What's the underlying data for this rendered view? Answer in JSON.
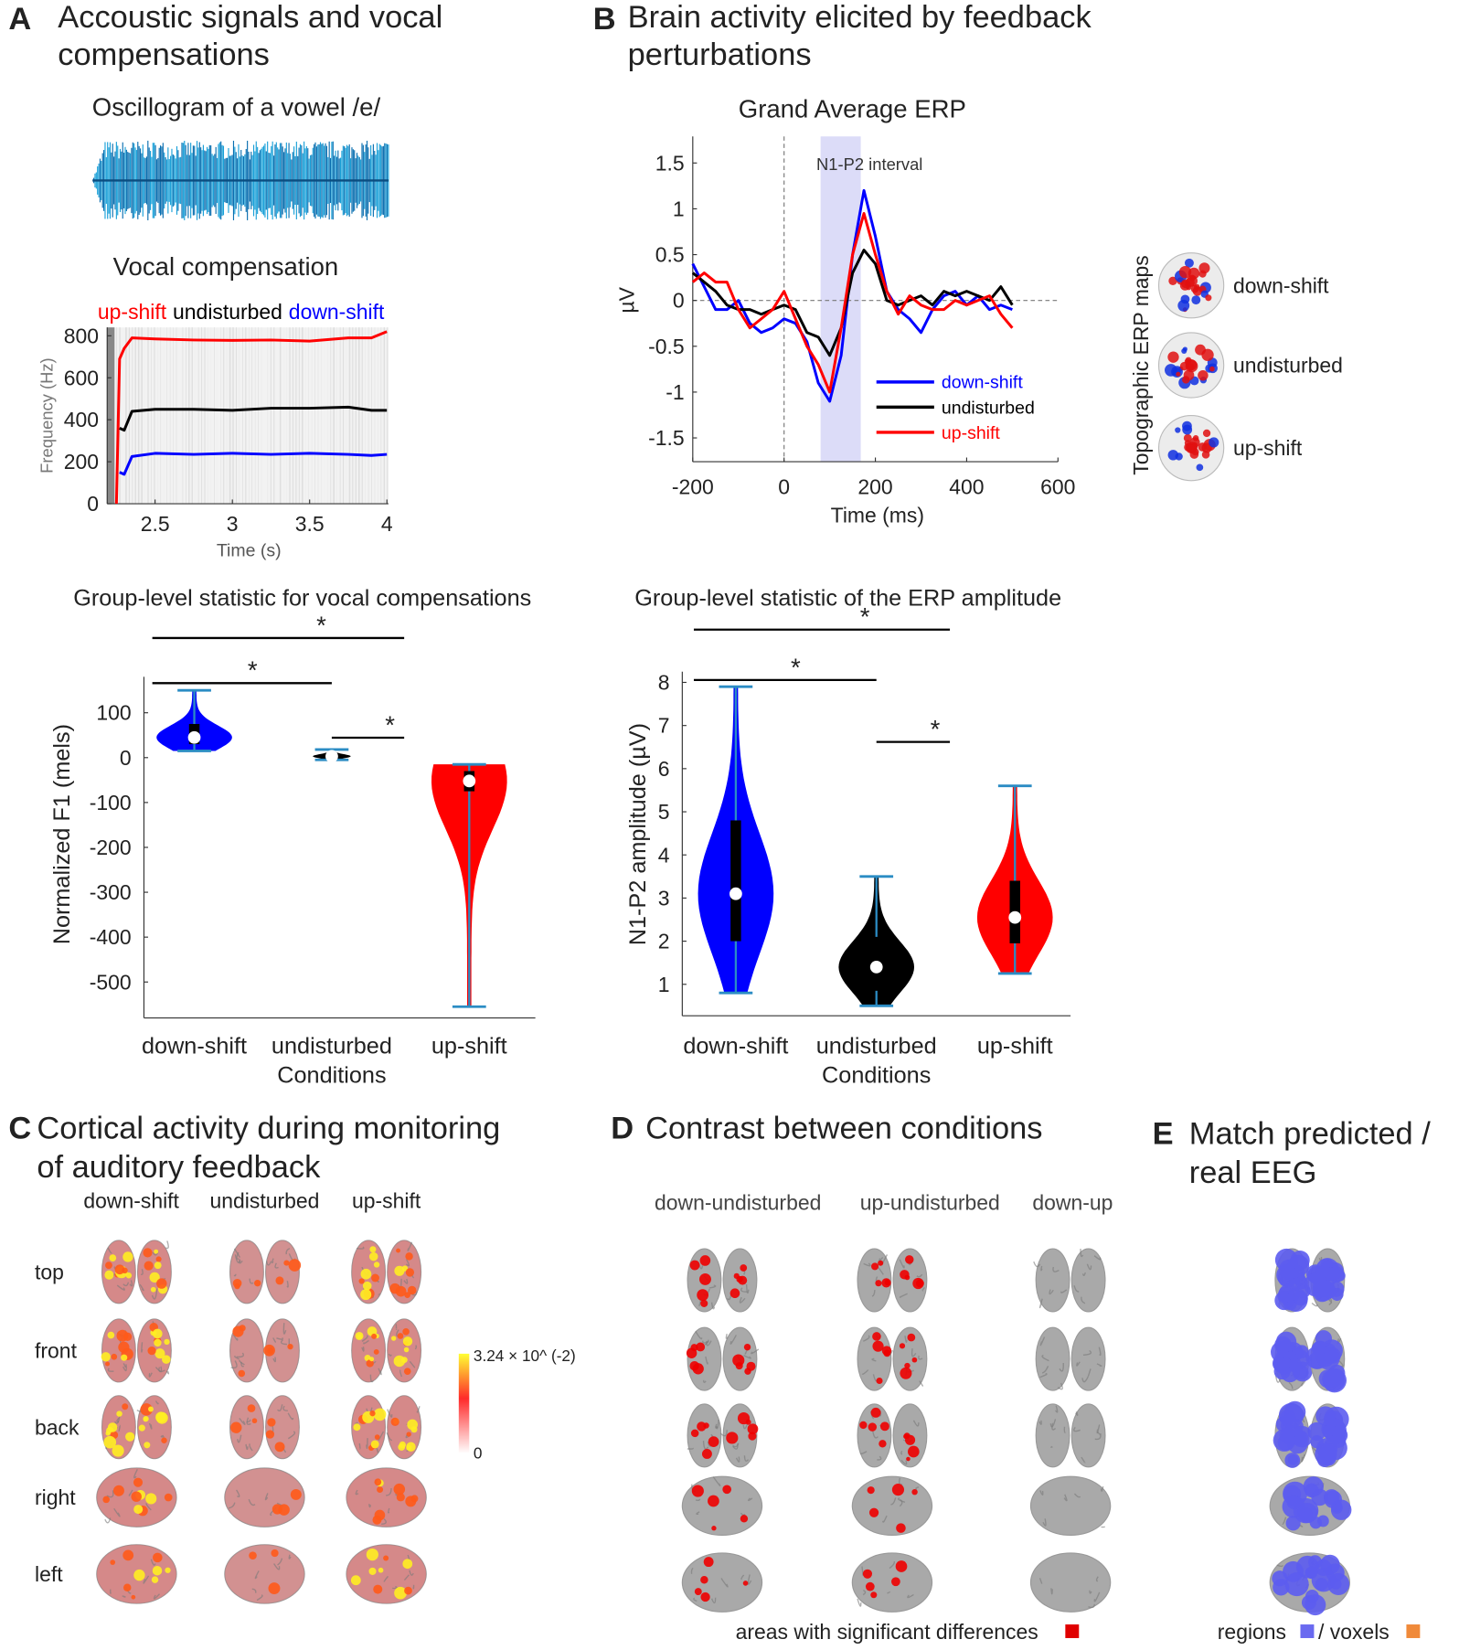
{
  "panel_a": {
    "letter": "A",
    "title_lines": [
      "Accoustic signals and vocal",
      "compensations"
    ],
    "oscillogram_title": "Oscillogram of a vowel /e/"
  },
  "panel_b": {
    "letter": "B",
    "title_lines": [
      "Brain activity elicited by feedback",
      "perturbations"
    ],
    "topo_title": "Topographic ERP maps",
    "topo_labels": [
      "down-shift",
      "undisturbed",
      "up-shift"
    ]
  },
  "panel_c": {
    "letter": "C",
    "title_lines": [
      "Cortical activity during monitoring",
      "of auditory feedback"
    ],
    "columns": [
      "down-shift",
      "undisturbed",
      "up-shift"
    ],
    "rows": [
      "top",
      "front",
      "back",
      "right",
      "left"
    ],
    "colorbar_labels": [
      "3.24 × 10^ (-2)",
      "0"
    ]
  },
  "panel_d": {
    "letter": "D",
    "title": "Contrast between conditions",
    "columns": [
      "down-undisturbed",
      "up-undisturbed",
      "down-up"
    ],
    "legend": "areas with significant differences"
  },
  "panel_e": {
    "letter": "E",
    "title_lines": [
      "Match predicted /",
      "real EEG"
    ],
    "legend": [
      "regions",
      "/ voxels"
    ]
  },
  "chart_data": [
    {
      "type": "line",
      "title": "Vocal compensation",
      "xlabel": "Time (s)",
      "ylabel": "Frequency (Hz)",
      "x": [
        2.25,
        2.27,
        2.3,
        2.35,
        2.5,
        2.75,
        3,
        3.25,
        3.5,
        3.75,
        3.9,
        4.0
      ],
      "series": [
        {
          "name": "up-shift",
          "color": "#ff0000",
          "values": [
            0,
            690,
            740,
            790,
            785,
            780,
            778,
            780,
            775,
            790,
            790,
            820
          ]
        },
        {
          "name": "undisturbed",
          "color": "#000000",
          "values": [
            null,
            360,
            350,
            440,
            450,
            450,
            445,
            455,
            455,
            460,
            445,
            445
          ]
        },
        {
          "name": "down-shift",
          "color": "#0000ff",
          "values": [
            null,
            150,
            140,
            225,
            240,
            235,
            240,
            235,
            240,
            235,
            230,
            235
          ]
        }
      ],
      "xlim": [
        2.19,
        4.01
      ],
      "xticks": [
        2.5,
        3,
        3.5,
        4
      ],
      "ylim": [
        0,
        840
      ],
      "yticks": [
        0,
        200,
        400,
        600,
        800
      ]
    },
    {
      "type": "line",
      "title": "Grand Average ERP",
      "xlabel": "Time (ms)",
      "ylabel": "µV",
      "annotation": "N1-P2 interval",
      "interval": [
        80,
        168
      ],
      "legend": "lower right",
      "x": [
        -200,
        -175,
        -150,
        -125,
        -100,
        -75,
        -50,
        -25,
        0,
        25,
        50,
        75,
        100,
        125,
        150,
        175,
        200,
        225,
        250,
        275,
        300,
        325,
        350,
        375,
        400,
        425,
        450,
        475,
        500
      ],
      "series": [
        {
          "name": "down-shift",
          "color": "#0000ff",
          "values": [
            0.4,
            0.15,
            -0.1,
            -0.1,
            0.0,
            -0.25,
            -0.35,
            -0.3,
            -0.2,
            -0.25,
            -0.45,
            -0.9,
            -1.1,
            -0.6,
            0.5,
            1.2,
            0.7,
            0.1,
            -0.1,
            -0.2,
            -0.35,
            -0.1,
            0.05,
            0.1,
            -0.05,
            0.05,
            -0.1,
            -0.05,
            -0.1
          ]
        },
        {
          "name": "undisturbed",
          "color": "#000000",
          "values": [
            0.3,
            0.2,
            0.1,
            -0.05,
            -0.1,
            -0.1,
            -0.15,
            -0.1,
            -0.05,
            -0.1,
            -0.35,
            -0.4,
            -0.6,
            -0.3,
            0.3,
            0.55,
            0.4,
            0.0,
            -0.05,
            0.0,
            0.05,
            -0.05,
            0.1,
            0.05,
            0.1,
            0.05,
            0.0,
            0.15,
            -0.05
          ]
        },
        {
          "name": "up-shift",
          "color": "#ff0000",
          "values": [
            0.2,
            0.3,
            0.2,
            0.2,
            -0.1,
            -0.3,
            -0.2,
            -0.1,
            0.1,
            -0.2,
            -0.5,
            -0.7,
            -1.0,
            -0.3,
            0.5,
            0.95,
            0.5,
            0.1,
            -0.15,
            0.05,
            -0.05,
            -0.1,
            -0.1,
            0.0,
            -0.05,
            0.0,
            0.05,
            -0.15,
            -0.3
          ]
        }
      ],
      "xlim": [
        -200,
        600
      ],
      "xticks": [
        -200,
        0,
        200,
        400,
        600
      ],
      "ylim": [
        -1.76,
        1.79
      ],
      "yticks": [
        -1.5,
        -1,
        -0.5,
        0,
        0.5,
        1,
        1.5
      ]
    },
    {
      "type": "violin",
      "title": "Group-level statistic for vocal compensations",
      "xlabel": "Conditions",
      "ylabel": "Normalized F1 (mels)",
      "categories": [
        "down-shift",
        "undisturbed",
        "up-shift"
      ],
      "colors": [
        "#0000ff",
        "#000000",
        "#ff0000"
      ],
      "min": [
        15,
        -5,
        -555
      ],
      "q1": [
        30,
        -2,
        -75
      ],
      "median": [
        45,
        3,
        -52
      ],
      "q3": [
        75,
        5,
        -30
      ],
      "max": [
        150,
        18,
        -15
      ],
      "significance": [
        {
          "pair": [
            0,
            1
          ],
          "label": "*"
        },
        {
          "pair": [
            1,
            2
          ],
          "label": "*"
        },
        {
          "pair": [
            0,
            2
          ],
          "label": "*"
        }
      ],
      "ylim": [
        -580,
        180
      ],
      "yticks": [
        -500,
        -400,
        -300,
        -200,
        -100,
        0,
        100
      ]
    },
    {
      "type": "violin",
      "title": "Group-level statistic of the ERP amplitude",
      "xlabel": "Conditions",
      "ylabel": "N1-P2 amplitude (µV)",
      "categories": [
        "down-shift",
        "undisturbed",
        "up-shift"
      ],
      "colors": [
        "#0000ff",
        "#000000",
        "#ff0000"
      ],
      "min": [
        0.8,
        0.5,
        1.25
      ],
      "q1": [
        2.0,
        0.85,
        1.95
      ],
      "median": [
        3.1,
        1.4,
        2.55
      ],
      "q3": [
        4.8,
        2.1,
        3.4
      ],
      "max": [
        7.9,
        3.5,
        5.6
      ],
      "significance": [
        {
          "pair": [
            0,
            2
          ],
          "label": "*"
        },
        {
          "pair": [
            0,
            1
          ],
          "label": "*"
        },
        {
          "pair": [
            1,
            2
          ],
          "label": "*"
        }
      ],
      "ylim": [
        0.27,
        8.25
      ],
      "yticks": [
        1,
        2,
        3,
        4,
        5,
        6,
        7,
        8
      ]
    }
  ]
}
